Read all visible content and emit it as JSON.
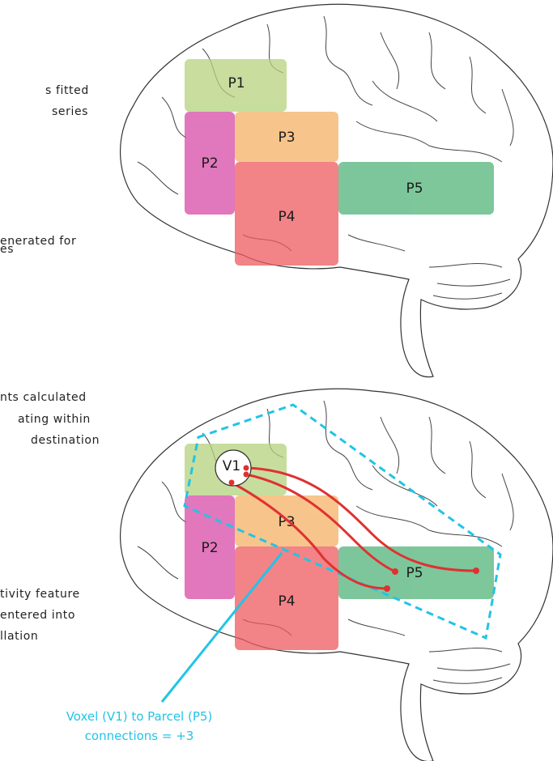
{
  "top_panel": {
    "side_text": [
      "s fitted",
      "series",
      "enerated for",
      "es"
    ],
    "parcels": [
      "P1",
      "P2",
      "P3",
      "P4",
      "P5"
    ]
  },
  "bottom_panel": {
    "side_text": [
      "nts calculated",
      "ating within",
      "destination",
      "tivity feature",
      "entered into",
      "llation"
    ],
    "parcels": [
      "P1",
      "P2",
      "P3",
      "P4",
      "P5"
    ],
    "voxel": "V1",
    "caption": [
      "Voxel (V1) to Parcel (P5)",
      "connections = +3"
    ]
  }
}
